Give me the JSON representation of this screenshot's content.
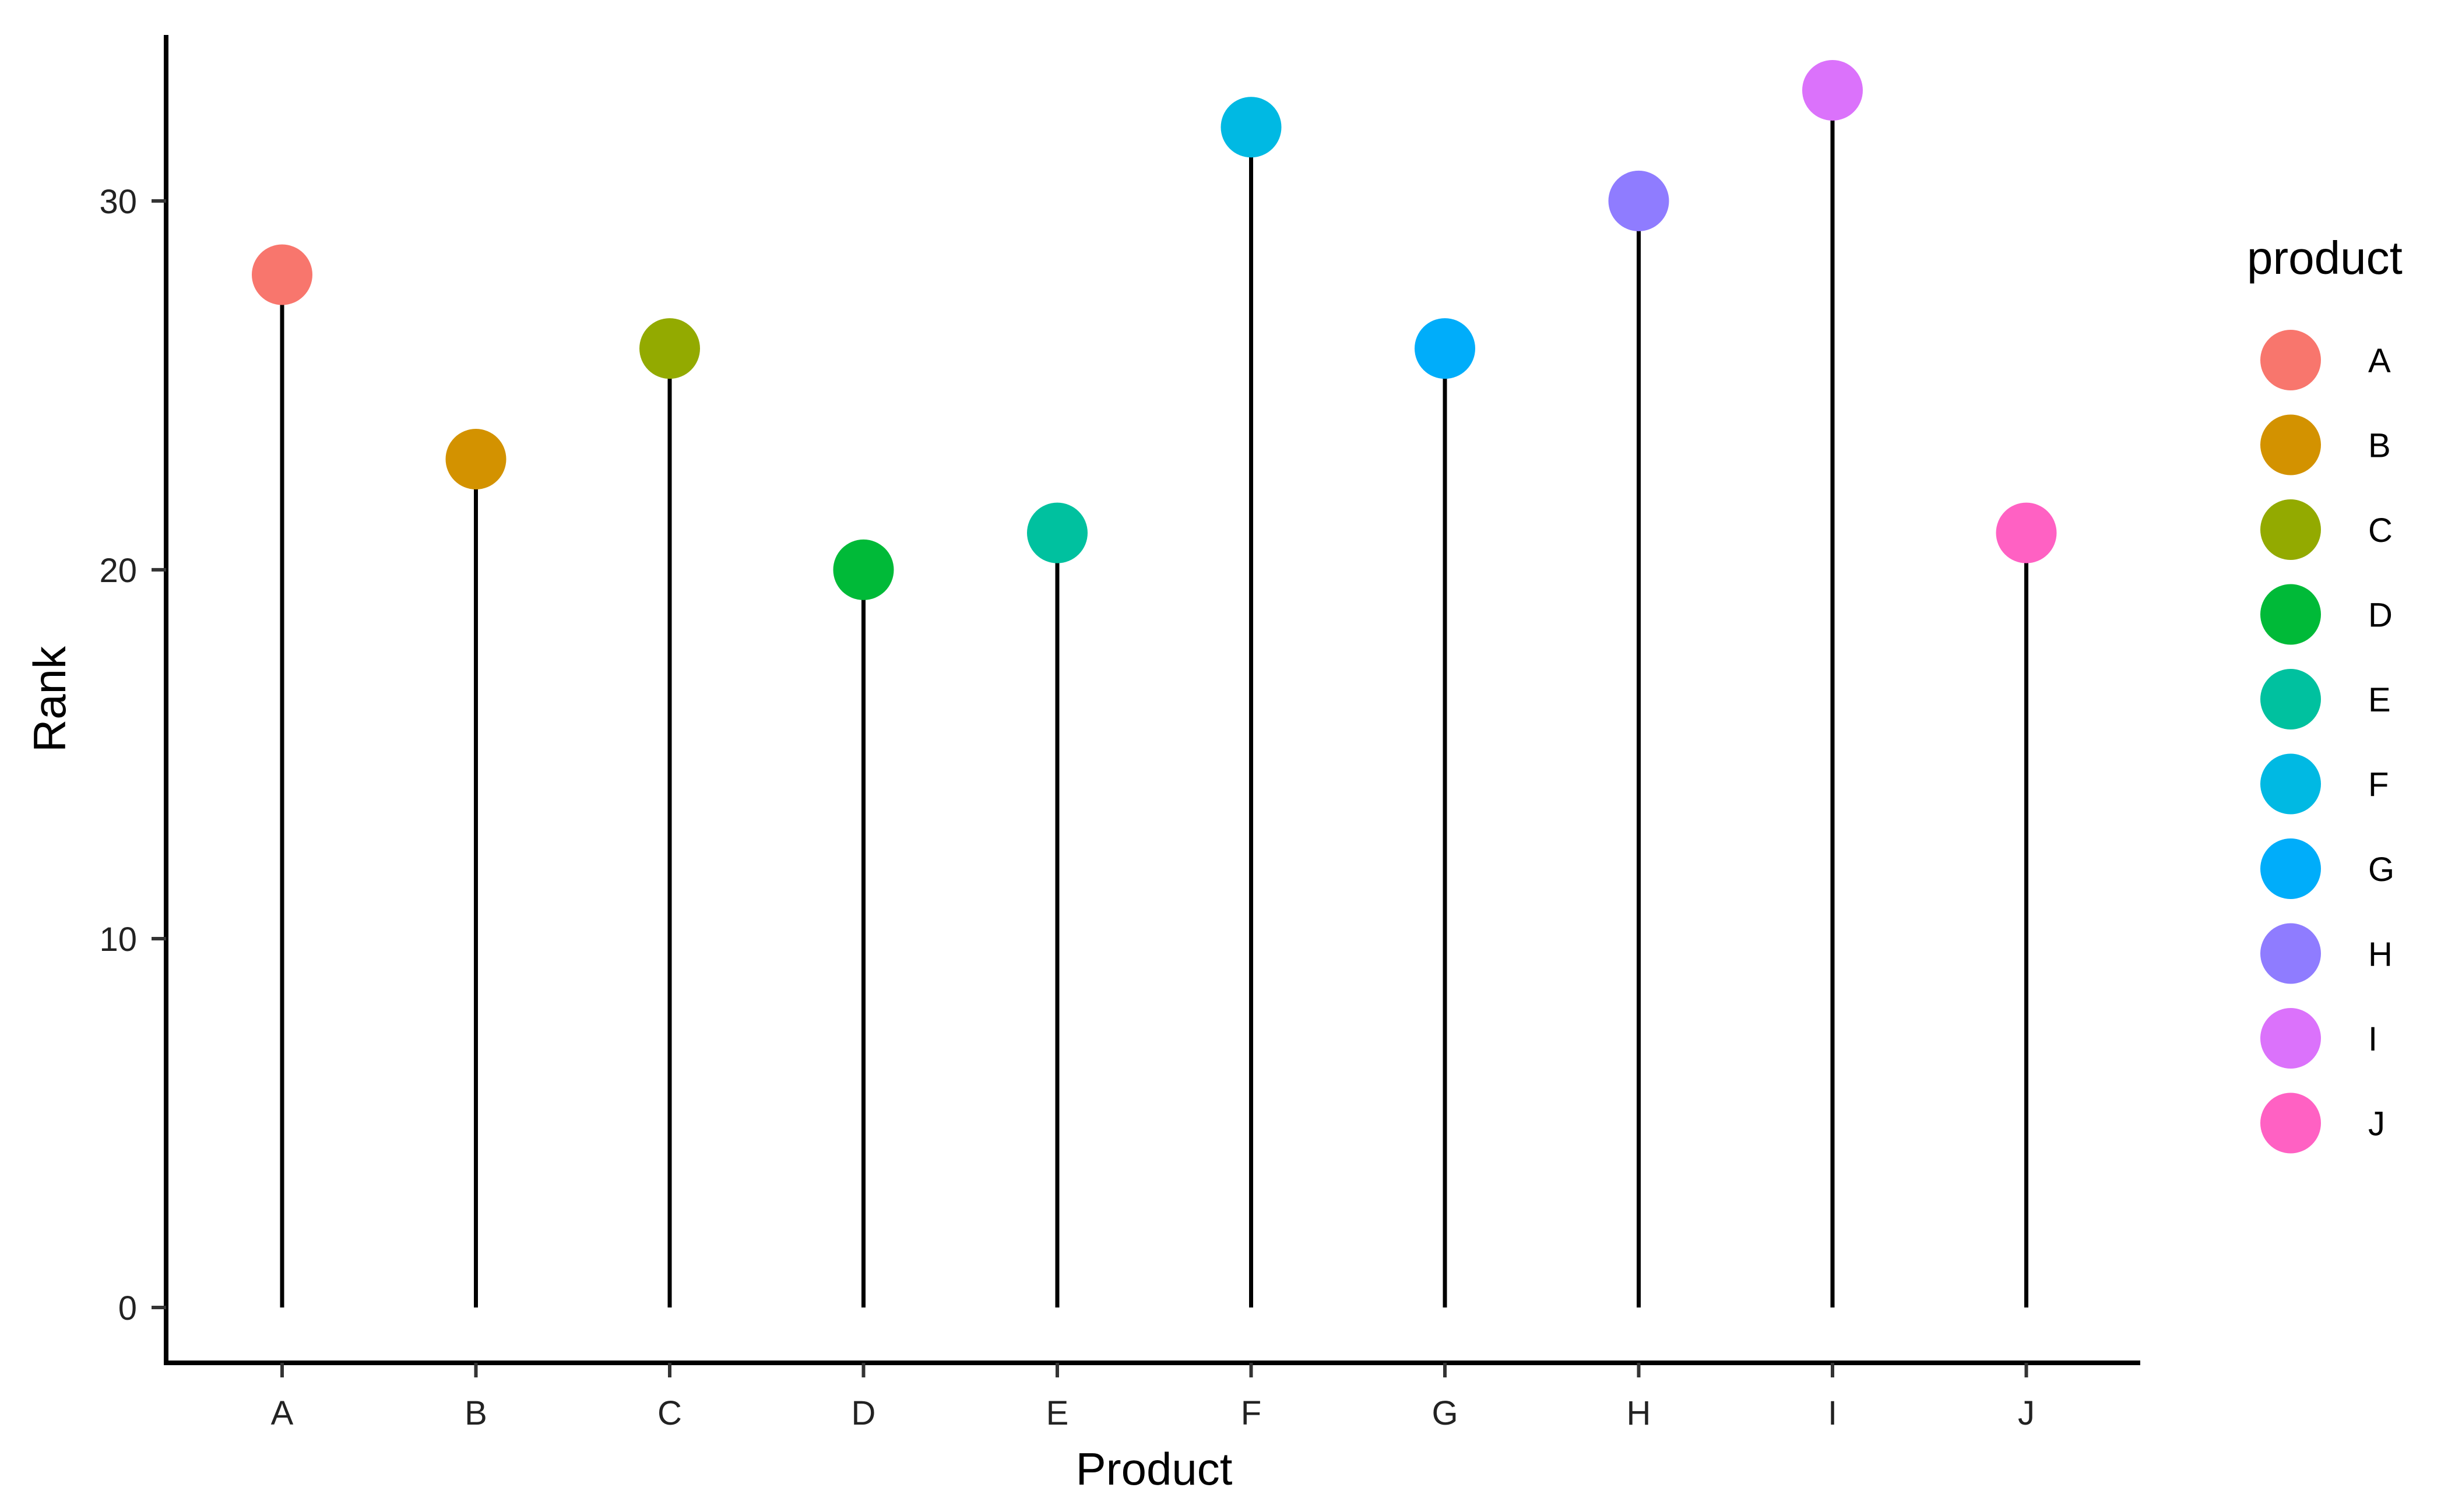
{
  "chart_data": {
    "type": "lollipop",
    "title": "",
    "xlabel": "Product",
    "ylabel": "Rank",
    "categories": [
      "A",
      "B",
      "C",
      "D",
      "E",
      "F",
      "G",
      "H",
      "I",
      "J"
    ],
    "values": [
      28,
      23,
      26,
      20,
      21,
      32,
      26,
      30,
      33,
      21
    ],
    "colors": [
      "#F8766D",
      "#D39200",
      "#93AA00",
      "#00BA38",
      "#00C19F",
      "#00B9E3",
      "#00ADFA",
      "#8F7CFF",
      "#DB72FB",
      "#FF61C3"
    ],
    "ylim": [
      -1.5,
      34.5
    ],
    "yticks": [
      0,
      10,
      20,
      30
    ],
    "grid": false,
    "legend": {
      "title": "product",
      "position": "right",
      "entries": [
        "A",
        "B",
        "C",
        "D",
        "E",
        "F",
        "G",
        "H",
        "I",
        "J"
      ]
    }
  }
}
